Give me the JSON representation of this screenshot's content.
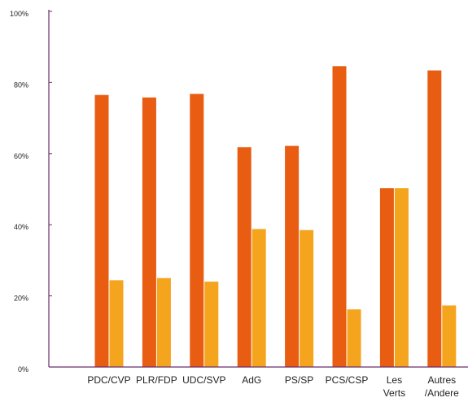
{
  "chart_data": {
    "type": "bar",
    "categories": [
      [
        "PDC/CVP"
      ],
      [
        "PLR/FDP"
      ],
      [
        "UDC/SVP"
      ],
      [
        "AdG"
      ],
      [
        "PS/SP"
      ],
      [
        "PCS/CSP"
      ],
      [
        "Les",
        "Verts"
      ],
      [
        "Autres",
        "/Andere"
      ]
    ],
    "series": [
      {
        "color": "#E85D12",
        "values": [
          76.5,
          75.8,
          76.8,
          61.8,
          62.2,
          84.6,
          50.3,
          83.4
        ]
      },
      {
        "color": "#F5A41D",
        "values": [
          24.4,
          25.0,
          24.0,
          38.8,
          38.5,
          16.2,
          50.3,
          17.3
        ]
      }
    ],
    "ylim": [
      0,
      100
    ],
    "yticks": [
      "0%",
      "20%",
      "40%",
      "60%",
      "80%",
      "100%"
    ],
    "xlabel": "",
    "ylabel": "",
    "axis_color": "#6B2D6B",
    "grid": false,
    "legend": "none"
  }
}
